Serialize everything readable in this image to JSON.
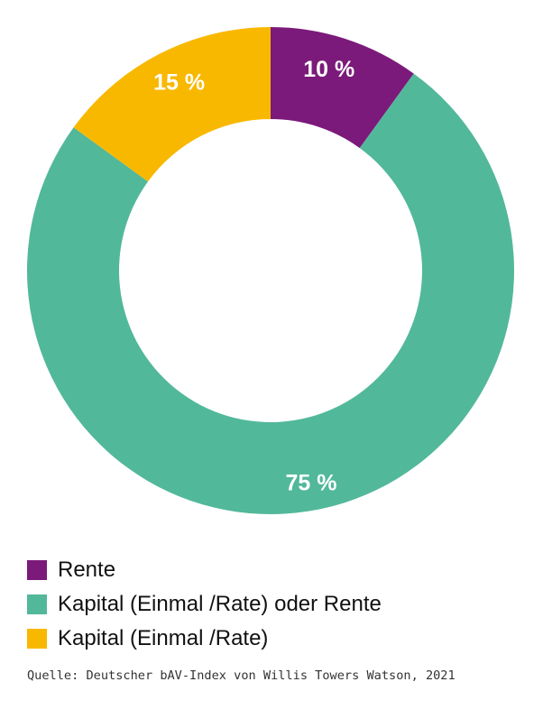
{
  "chart_data": {
    "type": "pie",
    "variant": "donut",
    "slices": [
      {
        "label": "Rente",
        "value": 10,
        "display": "10 %",
        "color": "#7B1A7A"
      },
      {
        "label": "Kapital (Einmal /Rate) oder Rente",
        "value": 75,
        "display": "75 %",
        "color": "#52B89A"
      },
      {
        "label": "Kapital (Einmal /Rate)",
        "value": 15,
        "display": "15 %",
        "color": "#F9B800"
      }
    ],
    "start_angle": "12 o'clock",
    "direction": "clockwise",
    "legend_placement": "bottom-left"
  },
  "legend": {
    "items": [
      {
        "label": "Rente",
        "color": "#7B1A7A"
      },
      {
        "label": "Kapital (Einmal /Rate) oder Rente",
        "color": "#52B89A"
      },
      {
        "label": "Kapital (Einmal /Rate)",
        "color": "#F9B800"
      }
    ]
  },
  "source": {
    "text": "Quelle: Deutscher bAV-Index von Willis Towers Watson, 2021"
  }
}
